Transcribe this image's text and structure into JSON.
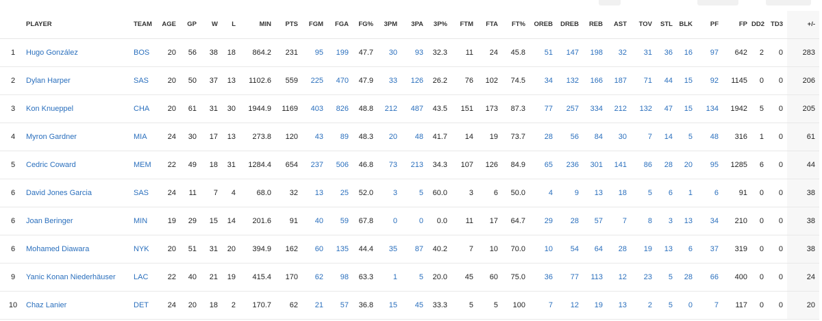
{
  "columns": [
    "PLAYER",
    "TEAM",
    "AGE",
    "GP",
    "W",
    "L",
    "MIN",
    "PTS",
    "FGM",
    "FGA",
    "FG%",
    "3PM",
    "3PA",
    "3P%",
    "FTM",
    "FTA",
    "FT%",
    "OREB",
    "DREB",
    "REB",
    "AST",
    "TOV",
    "STL",
    "BLK",
    "PF",
    "FP",
    "DD2",
    "TD3",
    "+/-"
  ],
  "rows": [
    {
      "rank": "1",
      "player": "Hugo González",
      "team": "BOS",
      "age": "20",
      "gp": "56",
      "w": "38",
      "l": "18",
      "min": "864.2",
      "pts": "231",
      "fgm": "95",
      "fga": "199",
      "fgp": "47.7",
      "tpm": "30",
      "tpa": "93",
      "tpp": "32.3",
      "ftm": "11",
      "fta": "24",
      "ftp": "45.8",
      "oreb": "51",
      "dreb": "147",
      "reb": "198",
      "ast": "32",
      "tov": "31",
      "stl": "36",
      "blk": "16",
      "pf": "97",
      "fp": "642",
      "dd2": "2",
      "td3": "0",
      "pm": "283"
    },
    {
      "rank": "2",
      "player": "Dylan Harper",
      "team": "SAS",
      "age": "20",
      "gp": "50",
      "w": "37",
      "l": "13",
      "min": "1102.6",
      "pts": "559",
      "fgm": "225",
      "fga": "470",
      "fgp": "47.9",
      "tpm": "33",
      "tpa": "126",
      "tpp": "26.2",
      "ftm": "76",
      "fta": "102",
      "ftp": "74.5",
      "oreb": "34",
      "dreb": "132",
      "reb": "166",
      "ast": "187",
      "tov": "71",
      "stl": "44",
      "blk": "15",
      "pf": "92",
      "fp": "1145",
      "dd2": "0",
      "td3": "0",
      "pm": "206"
    },
    {
      "rank": "3",
      "player": "Kon Knueppel",
      "team": "CHA",
      "age": "20",
      "gp": "61",
      "w": "31",
      "l": "30",
      "min": "1944.9",
      "pts": "1169",
      "fgm": "403",
      "fga": "826",
      "fgp": "48.8",
      "tpm": "212",
      "tpa": "487",
      "tpp": "43.5",
      "ftm": "151",
      "fta": "173",
      "ftp": "87.3",
      "oreb": "77",
      "dreb": "257",
      "reb": "334",
      "ast": "212",
      "tov": "132",
      "stl": "47",
      "blk": "15",
      "pf": "134",
      "fp": "1942",
      "dd2": "5",
      "td3": "0",
      "pm": "205"
    },
    {
      "rank": "4",
      "player": "Myron Gardner",
      "team": "MIA",
      "age": "24",
      "gp": "30",
      "w": "17",
      "l": "13",
      "min": "273.8",
      "pts": "120",
      "fgm": "43",
      "fga": "89",
      "fgp": "48.3",
      "tpm": "20",
      "tpa": "48",
      "tpp": "41.7",
      "ftm": "14",
      "fta": "19",
      "ftp": "73.7",
      "oreb": "28",
      "dreb": "56",
      "reb": "84",
      "ast": "30",
      "tov": "7",
      "stl": "14",
      "blk": "5",
      "pf": "48",
      "fp": "316",
      "dd2": "1",
      "td3": "0",
      "pm": "61"
    },
    {
      "rank": "5",
      "player": "Cedric Coward",
      "team": "MEM",
      "age": "22",
      "gp": "49",
      "w": "18",
      "l": "31",
      "min": "1284.4",
      "pts": "654",
      "fgm": "237",
      "fga": "506",
      "fgp": "46.8",
      "tpm": "73",
      "tpa": "213",
      "tpp": "34.3",
      "ftm": "107",
      "fta": "126",
      "ftp": "84.9",
      "oreb": "65",
      "dreb": "236",
      "reb": "301",
      "ast": "141",
      "tov": "86",
      "stl": "28",
      "blk": "20",
      "pf": "95",
      "fp": "1285",
      "dd2": "6",
      "td3": "0",
      "pm": "44"
    },
    {
      "rank": "6",
      "player": "David Jones Garcia",
      "team": "SAS",
      "age": "24",
      "gp": "11",
      "w": "7",
      "l": "4",
      "min": "68.0",
      "pts": "32",
      "fgm": "13",
      "fga": "25",
      "fgp": "52.0",
      "tpm": "3",
      "tpa": "5",
      "tpp": "60.0",
      "ftm": "3",
      "fta": "6",
      "ftp": "50.0",
      "oreb": "4",
      "dreb": "9",
      "reb": "13",
      "ast": "18",
      "tov": "5",
      "stl": "6",
      "blk": "1",
      "pf": "6",
      "fp": "91",
      "dd2": "0",
      "td3": "0",
      "pm": "38"
    },
    {
      "rank": "6",
      "player": "Joan Beringer",
      "team": "MIN",
      "age": "19",
      "gp": "29",
      "w": "15",
      "l": "14",
      "min": "201.6",
      "pts": "91",
      "fgm": "40",
      "fga": "59",
      "fgp": "67.8",
      "tpm": "0",
      "tpa": "0",
      "tpp": "0.0",
      "ftm": "11",
      "fta": "17",
      "ftp": "64.7",
      "oreb": "29",
      "dreb": "28",
      "reb": "57",
      "ast": "7",
      "tov": "8",
      "stl": "3",
      "blk": "13",
      "pf": "34",
      "fp": "210",
      "dd2": "0",
      "td3": "0",
      "pm": "38"
    },
    {
      "rank": "6",
      "player": "Mohamed Diawara",
      "team": "NYK",
      "age": "20",
      "gp": "51",
      "w": "31",
      "l": "20",
      "min": "394.9",
      "pts": "162",
      "fgm": "60",
      "fga": "135",
      "fgp": "44.4",
      "tpm": "35",
      "tpa": "87",
      "tpp": "40.2",
      "ftm": "7",
      "fta": "10",
      "ftp": "70.0",
      "oreb": "10",
      "dreb": "54",
      "reb": "64",
      "ast": "28",
      "tov": "19",
      "stl": "13",
      "blk": "6",
      "pf": "37",
      "fp": "319",
      "dd2": "0",
      "td3": "0",
      "pm": "38"
    },
    {
      "rank": "9",
      "player": "Yanic Konan Niederhäuser",
      "team": "LAC",
      "age": "22",
      "gp": "40",
      "w": "21",
      "l": "19",
      "min": "415.4",
      "pts": "170",
      "fgm": "62",
      "fga": "98",
      "fgp": "63.3",
      "tpm": "1",
      "tpa": "5",
      "tpp": "20.0",
      "ftm": "45",
      "fta": "60",
      "ftp": "75.0",
      "oreb": "36",
      "dreb": "77",
      "reb": "113",
      "ast": "12",
      "tov": "23",
      "stl": "5",
      "blk": "28",
      "pf": "66",
      "fp": "400",
      "dd2": "0",
      "td3": "0",
      "pm": "24"
    },
    {
      "rank": "10",
      "player": "Chaz Lanier",
      "team": "DET",
      "age": "24",
      "gp": "20",
      "w": "18",
      "l": "2",
      "min": "170.7",
      "pts": "62",
      "fgm": "21",
      "fga": "57",
      "fgp": "36.8",
      "tpm": "15",
      "tpa": "45",
      "tpp": "33.3",
      "ftm": "5",
      "fta": "5",
      "ftp": "100",
      "oreb": "7",
      "dreb": "12",
      "reb": "19",
      "ast": "13",
      "tov": "2",
      "stl": "5",
      "blk": "0",
      "pf": "7",
      "fp": "117",
      "dd2": "0",
      "td3": "0",
      "pm": "20"
    }
  ]
}
